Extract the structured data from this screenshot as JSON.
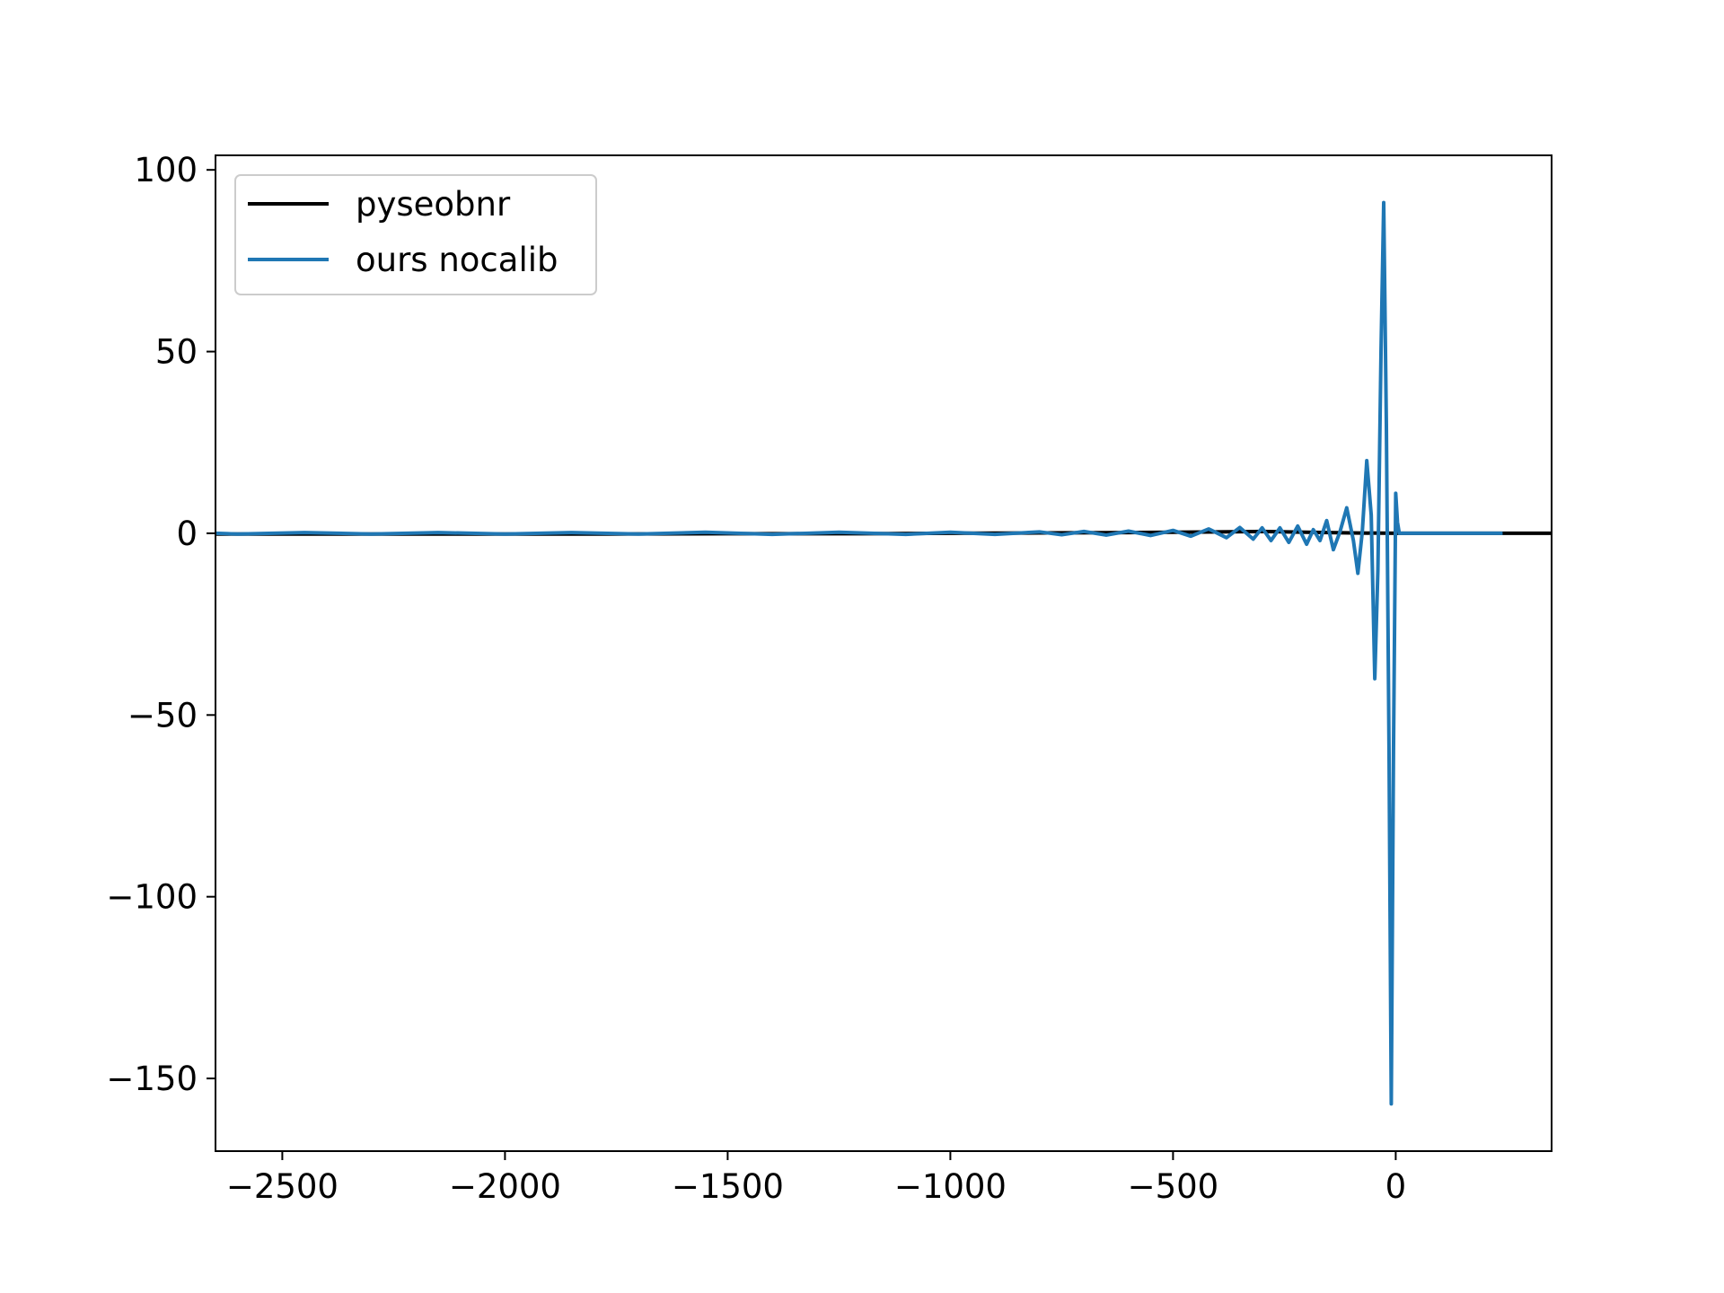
{
  "chart_data": {
    "type": "line",
    "title": "",
    "xlabel": "",
    "ylabel": "",
    "xlim": [
      -2650,
      350
    ],
    "ylim": [
      -170,
      104
    ],
    "x_ticks": [
      -2500,
      -2000,
      -1500,
      -1000,
      -500,
      0
    ],
    "x_tick_labels": [
      "−2500",
      "−2000",
      "−1500",
      "−1000",
      "−500",
      "0"
    ],
    "y_ticks": [
      100,
      50,
      0,
      -50,
      -100,
      -150
    ],
    "y_tick_labels": [
      "100",
      "50",
      "0",
      "−50",
      "−100",
      "−150"
    ],
    "grid": false,
    "legend_position": "top-left",
    "series": [
      {
        "name": "pyseobnr",
        "color": "#000000",
        "x": [
          -2650,
          -2400,
          -2100,
          -1800,
          -1500,
          -1200,
          -1000,
          -800,
          -600,
          -500,
          -400,
          -300,
          -200,
          -100,
          0,
          100,
          200,
          300,
          350
        ],
        "values": [
          -0.2,
          -0.2,
          -0.2,
          -0.2,
          -0.1,
          -0.1,
          0.0,
          0.1,
          0.2,
          0.3,
          0.4,
          0.5,
          0.3,
          0.1,
          0.0,
          0.0,
          0.0,
          0.0,
          0.0
        ]
      },
      {
        "name": "ours nocalib",
        "color": "#1f77b4",
        "x": [
          -2650,
          -2600,
          -2450,
          -2300,
          -2150,
          -2000,
          -1850,
          -1700,
          -1550,
          -1400,
          -1250,
          -1100,
          -1000,
          -900,
          -800,
          -750,
          -700,
          -650,
          -600,
          -550,
          -500,
          -460,
          -420,
          -380,
          -350,
          -320,
          -300,
          -280,
          -260,
          -240,
          -220,
          -200,
          -185,
          -170,
          -155,
          -140,
          -125,
          -110,
          -95,
          -85,
          -75,
          -65,
          -55,
          -47,
          -40,
          -33,
          -27,
          -21,
          -15,
          -10,
          -5,
          0,
          4,
          8,
          12,
          16,
          20,
          30,
          60,
          100,
          150,
          200,
          240
        ],
        "values": [
          0.0,
          -0.2,
          0.2,
          -0.2,
          0.2,
          -0.2,
          0.2,
          -0.2,
          0.3,
          -0.3,
          0.3,
          -0.3,
          0.3,
          -0.3,
          0.4,
          -0.4,
          0.5,
          -0.5,
          0.6,
          -0.6,
          0.8,
          -0.8,
          1.2,
          -1.2,
          1.6,
          -1.6,
          1.5,
          -2.0,
          1.5,
          -2.5,
          2.0,
          -3.0,
          1.0,
          -2.0,
          3.5,
          -4.5,
          0.5,
          7.0,
          -2.0,
          -11.0,
          0.5,
          20.0,
          5.0,
          -40.0,
          -10.0,
          50.0,
          91.0,
          30.0,
          -60.0,
          -157.0,
          -60.0,
          11.0,
          3.0,
          0.0,
          0.0,
          0.0,
          0.0,
          0.0,
          0.0,
          0.0,
          0.0,
          0.0,
          0.0
        ]
      }
    ]
  }
}
